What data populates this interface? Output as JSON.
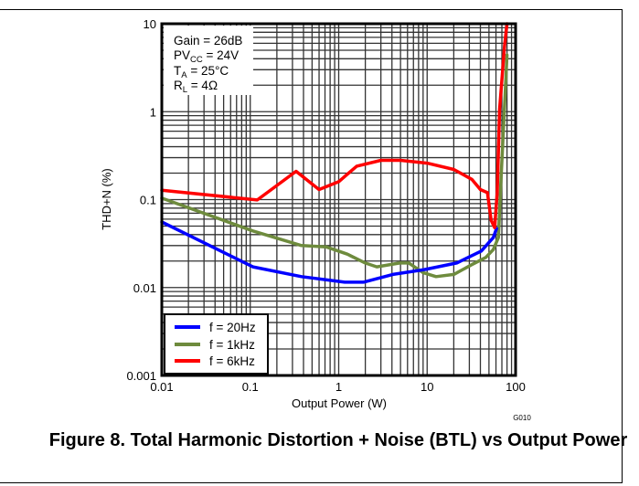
{
  "chart_data": {
    "type": "line",
    "title": "Figure 8. Total Harmonic Distortion + Noise (BTL) vs Output Power",
    "xlabel": "Output Power (W)",
    "ylabel": "THD+N (%)",
    "xscale": "log",
    "yscale": "log",
    "xlim": [
      0.01,
      100
    ],
    "ylim": [
      0.001,
      10
    ],
    "x_ticks": [
      "0.01",
      "0.1",
      "1",
      "10",
      "100"
    ],
    "y_ticks": [
      "0.001",
      "0.01",
      "0.1",
      "1",
      "10"
    ],
    "grid": true,
    "graph_code": "G010",
    "conditions": [
      {
        "main": "Gain = 26dB",
        "parts": [
          "Gain = 26dB"
        ]
      },
      {
        "main": "PVCC = 24V",
        "parts": [
          "PV",
          "CC",
          " = 24V"
        ]
      },
      {
        "main": "TA = 25°C",
        "parts": [
          "T",
          "A",
          " = 25°C"
        ]
      },
      {
        "main": "RL = 4Ω",
        "parts": [
          "R",
          "L",
          " = 4Ω"
        ]
      }
    ],
    "legend_position": "bottom-left",
    "series": [
      {
        "name": "f = 20Hz",
        "color": "#0000ff",
        "x": [
          0.01,
          0.107,
          0.38,
          1.17,
          1.9,
          4.1,
          9.3,
          21.6,
          41,
          56,
          61
        ],
        "y": [
          0.0556,
          0.0172,
          0.0133,
          0.0115,
          0.0115,
          0.0141,
          0.016,
          0.019,
          0.026,
          0.037,
          0.047
        ]
      },
      {
        "name": "f = 1kHz",
        "color": "#6e8b3d",
        "x": [
          0.01,
          0.107,
          0.38,
          0.72,
          1.25,
          2,
          2.7,
          4.9,
          6.2,
          9,
          12.6,
          20,
          32,
          46,
          56,
          64,
          68,
          80
        ],
        "y": [
          0.104,
          0.044,
          0.03,
          0.029,
          0.024,
          0.019,
          0.0172,
          0.019,
          0.019,
          0.0148,
          0.0133,
          0.0141,
          0.0182,
          0.022,
          0.027,
          0.037,
          0.15,
          4.4
        ]
      },
      {
        "name": "f = 6kHz",
        "color": "#ff0000",
        "x": [
          0.01,
          0.12,
          0.33,
          0.6,
          1,
          1.6,
          3,
          5,
          10,
          20,
          32,
          40,
          48,
          53,
          58,
          62,
          66,
          75,
          80
        ],
        "y": [
          0.128,
          0.099,
          0.21,
          0.13,
          0.16,
          0.24,
          0.28,
          0.28,
          0.26,
          0.22,
          0.17,
          0.13,
          0.12,
          0.058,
          0.048,
          0.12,
          1.06,
          5.6,
          10
        ]
      }
    ]
  }
}
